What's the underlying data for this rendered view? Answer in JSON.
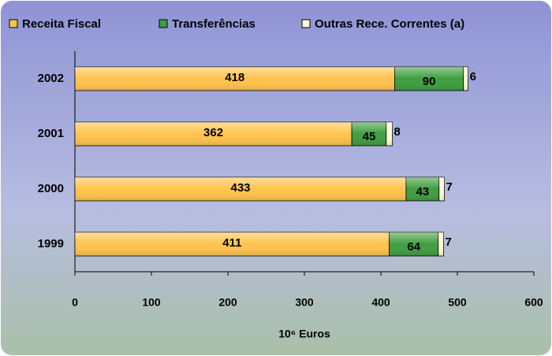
{
  "chart_data": {
    "type": "stacked-bar-horizontal",
    "categories": [
      "2002",
      "2001",
      "2000",
      "1999"
    ],
    "series": [
      {
        "name": "Receita Fiscal",
        "color": "#ffc34d",
        "values": [
          418,
          362,
          433,
          411
        ]
      },
      {
        "name": "Transferências",
        "color": "#3f9e3f",
        "values": [
          90,
          45,
          43,
          64
        ]
      },
      {
        "name": "Outras Rece. Correntes (a)",
        "color": "#ffffd0",
        "values": [
          6,
          8,
          7,
          7
        ]
      }
    ],
    "xlim": [
      0,
      600
    ],
    "xticks": [
      0,
      100,
      200,
      300,
      400,
      500,
      600
    ],
    "xlabel": "10⁶ Euros",
    "legend": "top"
  }
}
